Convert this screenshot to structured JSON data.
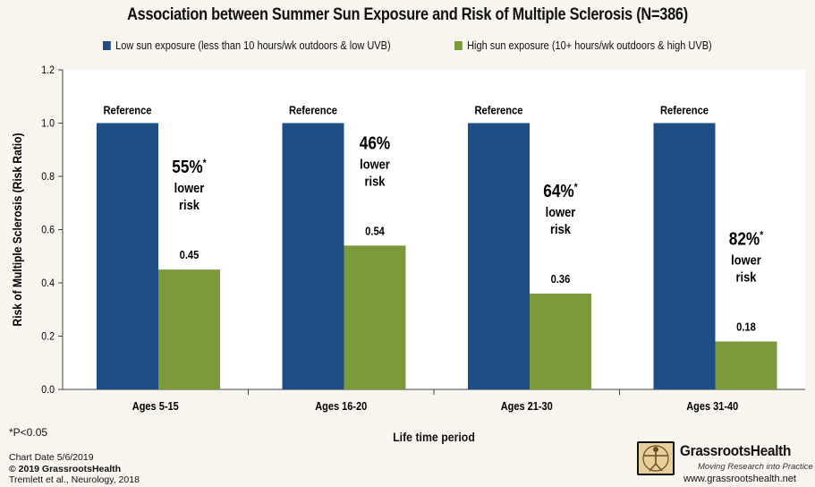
{
  "chart_data": {
    "type": "bar",
    "title": "Association between Summer Sun Exposure and Risk of Multiple Sclerosis (N=386)",
    "xlabel": "Life time period",
    "ylabel": "Risk of Multiple Sclerosis (Risk Ratio)",
    "ylim": [
      0,
      1.2
    ],
    "yticks": [
      "0.0",
      "0.2",
      "0.4",
      "0.6",
      "0.8",
      "1.0",
      "1.2"
    ],
    "grid": false,
    "legend_position": "top",
    "categories": [
      "Ages 5-15",
      "Ages 16-20",
      "Ages 21-30",
      "Ages 31-40"
    ],
    "series": [
      {
        "name": "Low sun exposure (less than 10 hours/wk outdoors & low UVB)",
        "color": "#1f4e86",
        "values": [
          1.0,
          1.0,
          1.0,
          1.0
        ],
        "labels": [
          "Reference",
          "Reference",
          "Reference",
          "Reference"
        ]
      },
      {
        "name": "High sun exposure (10+ hours/wk outdoors & high UVB)",
        "color": "#7b9a3c",
        "values": [
          0.45,
          0.54,
          0.36,
          0.18
        ],
        "labels": [
          "0.45",
          "0.54",
          "0.36",
          "0.18"
        ]
      }
    ],
    "annotations": [
      {
        "pct": "55%",
        "star": "*",
        "line1": "lower",
        "line2": "risk"
      },
      {
        "pct": "46%",
        "star": "",
        "line1": "lower",
        "line2": "risk"
      },
      {
        "pct": "64%",
        "star": "*",
        "line1": "lower",
        "line2": "risk"
      },
      {
        "pct": "82%",
        "star": "*",
        "line1": "lower",
        "line2": "risk"
      }
    ]
  },
  "footer": {
    "significance": "*P<0.05",
    "chart_date": "Chart Date 5/6/2019",
    "copyright": "© 2019 GrassrootsHealth",
    "source": "Tremlett et al., Neurology, 2018",
    "brand": "GrassrootsHealth",
    "tagline": "Moving Research into Practice",
    "website": "www.grassrootshealth.net"
  }
}
